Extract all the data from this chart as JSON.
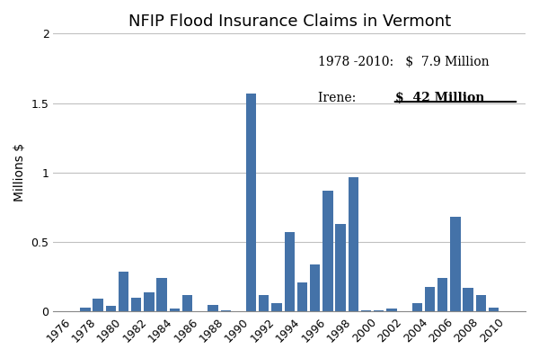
{
  "title": "NFIP Flood Insurance Claims in Vermont",
  "ylabel": "Millions $",
  "years": [
    1976,
    1977,
    1978,
    1979,
    1980,
    1981,
    1982,
    1983,
    1984,
    1985,
    1986,
    1987,
    1988,
    1989,
    1990,
    1991,
    1992,
    1993,
    1994,
    1995,
    1996,
    1997,
    1998,
    1999,
    2000,
    2001,
    2002,
    2003,
    2004,
    2005,
    2006,
    2007,
    2008,
    2009,
    2010
  ],
  "values": [
    0.0,
    0.03,
    0.09,
    0.04,
    0.29,
    0.1,
    0.14,
    0.24,
    0.02,
    0.12,
    0.0,
    0.05,
    0.01,
    0.0,
    1.57,
    0.12,
    0.06,
    0.57,
    0.21,
    0.34,
    0.87,
    0.63,
    0.97,
    0.01,
    0.01,
    0.02,
    0.0,
    0.06,
    0.18,
    0.24,
    0.68,
    0.17,
    0.12,
    0.03,
    0.0
  ],
  "bar_color": "#4472a8",
  "ylim": [
    0,
    2.0
  ],
  "yticks": [
    0,
    0.5,
    1.0,
    1.5,
    2.0
  ],
  "ytick_labels": [
    "0",
    "0.5",
    "1",
    "1.5",
    "2"
  ],
  "xticks": [
    1976,
    1978,
    1980,
    1982,
    1984,
    1986,
    1988,
    1990,
    1992,
    1994,
    1996,
    1998,
    2000,
    2002,
    2004,
    2006,
    2008,
    2010
  ],
  "background_color": "#ffffff",
  "grid_color": "#c0c0c0",
  "title_fontsize": 13,
  "ylabel_fontsize": 10,
  "tick_fontsize": 9,
  "ann1_text": "1978 -2010:   $  7.9 Million",
  "ann2_left": "Irene:           ",
  "ann2_right": "$  42 Million",
  "ann_fontsize": 10
}
